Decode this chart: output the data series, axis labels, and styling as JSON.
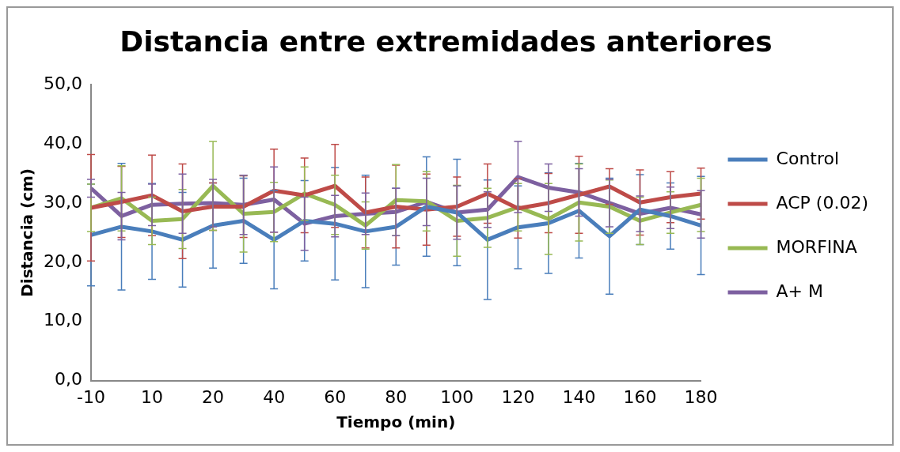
{
  "chart_data": {
    "type": "line",
    "title": "Distancia entre extremidades anteriores",
    "xlabel": "Tiempo (min)",
    "ylabel": "Distancia (cm)",
    "categories": [
      "-10",
      null,
      "10",
      null,
      "20",
      null,
      "40",
      null,
      "60",
      null,
      "80",
      null,
      "100",
      null,
      "120",
      null,
      "140",
      null,
      "160",
      null,
      "180"
    ],
    "series": [
      {
        "name": "Control",
        "color": "#4a7ebb",
        "values": [
          24.6,
          26.0,
          25.2,
          23.8,
          26.2,
          27.0,
          23.8,
          27.0,
          26.5,
          25.2,
          26.0,
          29.4,
          28.4,
          23.8,
          25.9,
          26.6,
          28.7,
          24.4,
          28.9,
          27.8,
          26.2
        ],
        "errors": [
          8.6,
          10.7,
          8.1,
          8.0,
          7.2,
          7.2,
          8.3,
          6.8,
          9.5,
          9.5,
          6.5,
          8.4,
          9.0,
          10.1,
          7.0,
          8.5,
          8.0,
          9.8,
          5.9,
          5.6,
          8.3
        ]
      },
      {
        "name": "ACP (0.02)",
        "color": "#be4b48",
        "values": [
          29.2,
          30.2,
          31.3,
          28.6,
          29.4,
          29.4,
          32.1,
          31.3,
          32.9,
          28.4,
          29.4,
          28.9,
          29.4,
          31.6,
          29.1,
          30.0,
          31.4,
          32.8,
          30.1,
          31.0,
          31.6
        ],
        "errors": [
          9.0,
          6.0,
          6.8,
          8.0,
          4.0,
          5.2,
          7.0,
          6.3,
          7.0,
          6.0,
          7.0,
          6.0,
          5.0,
          5.0,
          5.0,
          5.0,
          6.5,
          3.0,
          5.5,
          4.3,
          4.3
        ]
      },
      {
        "name": "MORFINA",
        "color": "#98b954",
        "values": [
          29.2,
          30.8,
          27.0,
          27.3,
          32.9,
          28.2,
          28.5,
          31.6,
          29.7,
          26.2,
          30.5,
          30.3,
          27.0,
          27.5,
          29.3,
          27.3,
          30.1,
          29.4,
          27.0,
          28.4,
          29.7
        ],
        "errors": [
          4.0,
          5.5,
          4.0,
          5.0,
          7.5,
          6.5,
          5.0,
          4.5,
          5.0,
          4.0,
          6.0,
          5.0,
          6.0,
          5.0,
          4.0,
          6.0,
          6.5,
          4.5,
          4.0,
          3.5,
          4.5
        ]
      },
      {
        "name": "A+ M",
        "color": "#7d60a0",
        "values": [
          32.5,
          27.8,
          29.7,
          29.9,
          30.0,
          29.7,
          30.6,
          26.5,
          27.8,
          28.2,
          28.5,
          30.2,
          28.4,
          28.9,
          34.4,
          32.6,
          31.8,
          30.0,
          28.2,
          29.2,
          28.1
        ],
        "errors": [
          1.5,
          4.0,
          3.5,
          5.0,
          4.0,
          5.0,
          5.5,
          4.5,
          3.5,
          3.5,
          4.0,
          4.0,
          4.5,
          3.0,
          6.0,
          4.0,
          4.0,
          4.0,
          3.0,
          3.5,
          4.0
        ]
      }
    ],
    "ylim": [
      0,
      50
    ],
    "yticks": [
      {
        "value": 0,
        "label": "0,0"
      },
      {
        "value": 10,
        "label": "10,0"
      },
      {
        "value": 20,
        "label": "20,0"
      },
      {
        "value": 30,
        "label": "30,0"
      },
      {
        "value": 40,
        "label": "40,0"
      },
      {
        "value": 50,
        "label": "50,0"
      }
    ],
    "grid": false,
    "legend": "right",
    "marker": "none",
    "line_style": "solid"
  }
}
